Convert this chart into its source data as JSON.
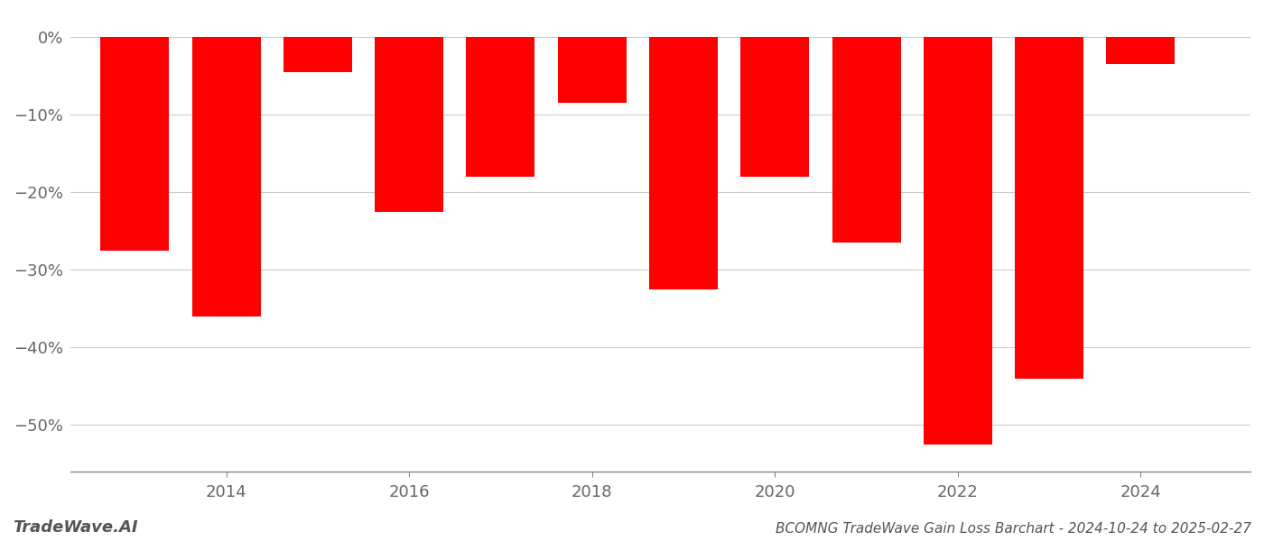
{
  "years": [
    2013,
    2014,
    2015,
    2016,
    2017,
    2018,
    2019,
    2020,
    2021,
    2022,
    2023,
    2024
  ],
  "values": [
    -27.5,
    -36.0,
    -4.5,
    -22.5,
    -18.0,
    -8.5,
    -32.5,
    -18.0,
    -26.5,
    -52.5,
    -44.0,
    -3.5
  ],
  "bar_color": "#ff0000",
  "title": "BCOMNG TradeWave Gain Loss Barchart - 2024-10-24 to 2025-02-27",
  "watermark": "TradeWave.AI",
  "ylim": [
    -56,
    3
  ],
  "yticks": [
    0,
    -10,
    -20,
    -30,
    -40,
    -50
  ],
  "ytick_labels": [
    "0%",
    "−10%",
    "−20%",
    "−30%",
    "−40%",
    "−50%"
  ],
  "background_color": "#ffffff",
  "grid_color": "#cccccc",
  "bar_width": 0.75,
  "xlim": [
    2012.3,
    2025.2
  ],
  "xticks": [
    2014,
    2016,
    2018,
    2020,
    2022,
    2024
  ],
  "figsize": [
    14.0,
    6.0
  ],
  "dpi": 100
}
